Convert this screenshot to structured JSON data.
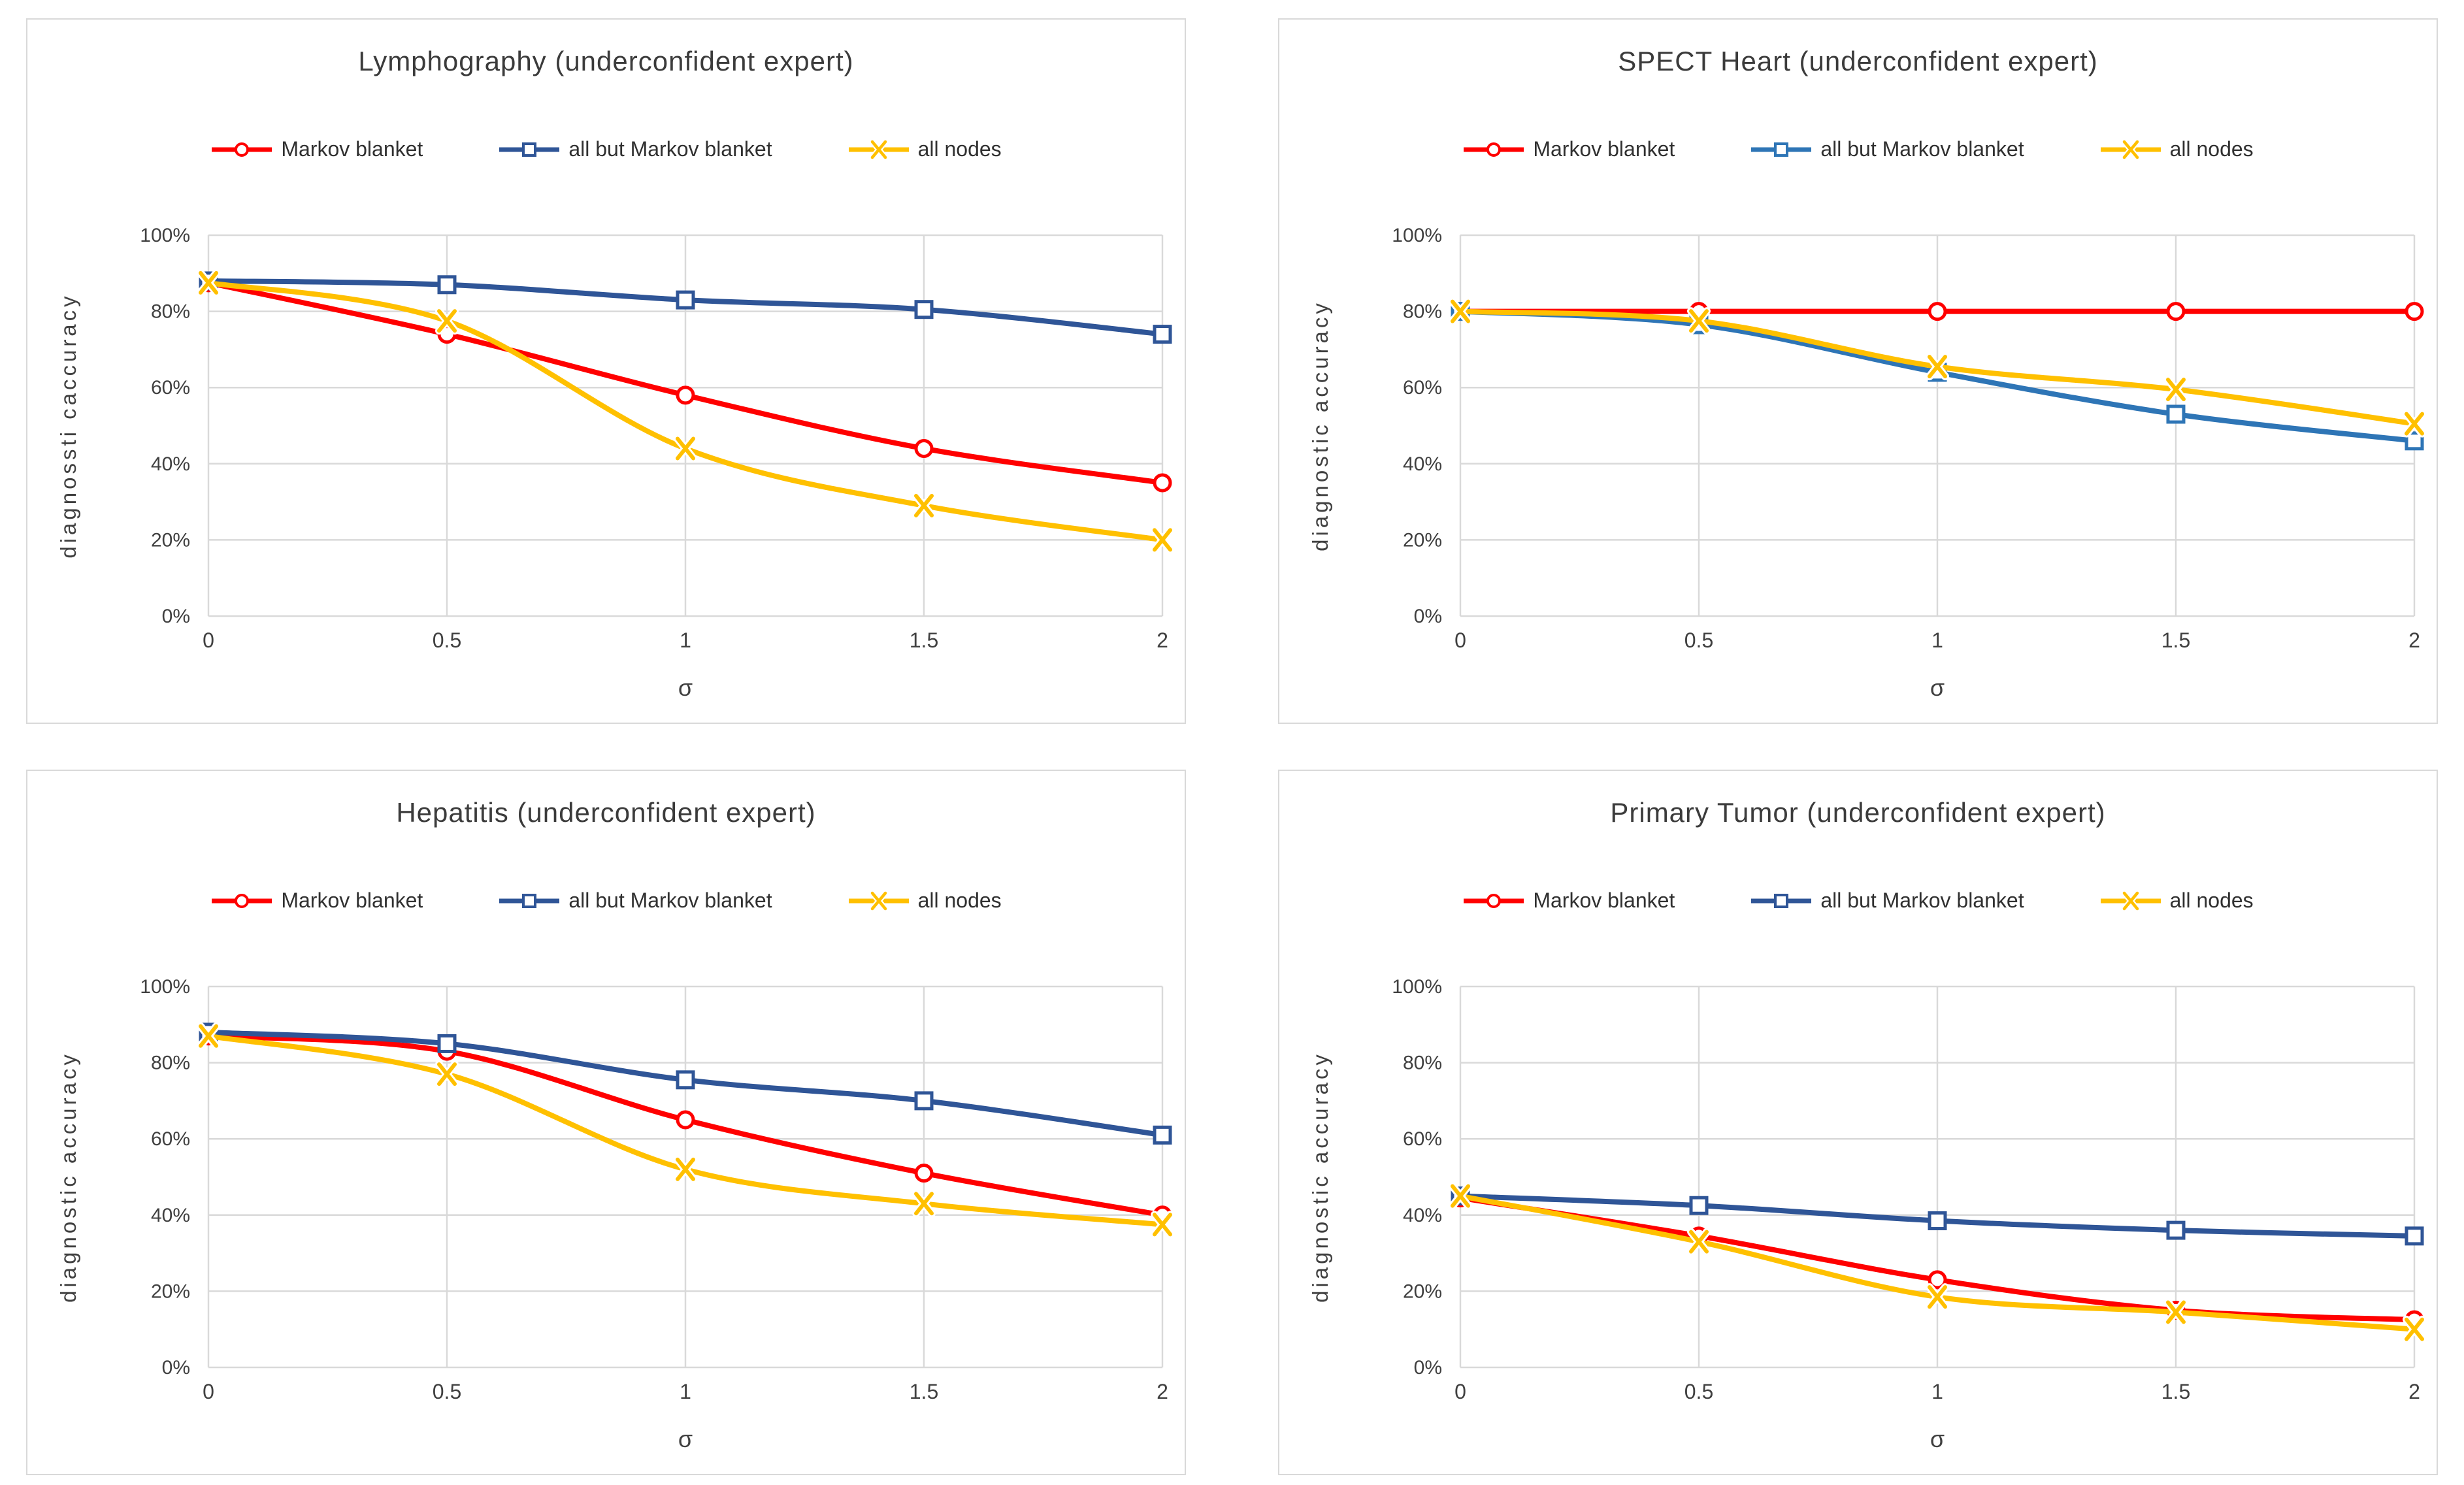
{
  "style": {
    "background": "#FFFFFF",
    "panel_border_color": "#D9D9D9",
    "grid_color": "#D9D9D9",
    "axis_text_color": "#404040",
    "title_color": "#3B3B3B",
    "marker_fill": "#FFFFFF"
  },
  "chart_data": [
    {
      "type": "line",
      "title": "Lymphography (underconfident expert)",
      "xlabel": "σ",
      "ylabel": "diagnossti caccuracy",
      "x": [
        0,
        0.5,
        1,
        1.5,
        2
      ],
      "x_tick_labels": [
        "0",
        "0.5",
        "1",
        "1.5",
        "2"
      ],
      "y_tick_labels": [
        "0%",
        "20%",
        "40%",
        "60%",
        "80%",
        "100%"
      ],
      "ylim": [
        0,
        100
      ],
      "grid": true,
      "legend_position": "top",
      "series": [
        {
          "name": "Markov blanket",
          "color": "#FF0000",
          "marker": "circle",
          "values": [
            87.5,
            74,
            58,
            44,
            35
          ]
        },
        {
          "name": "all but Markov blanket",
          "color": "#2F5597",
          "marker": "square",
          "values": [
            88,
            87,
            83,
            80.5,
            74
          ]
        },
        {
          "name": "all nodes",
          "color": "#FFC000",
          "marker": "x",
          "values": [
            87.5,
            77.5,
            44,
            29,
            20
          ]
        }
      ]
    },
    {
      "type": "line",
      "title": "SPECT Heart (underconfident expert)",
      "xlabel": "σ",
      "ylabel": "diagnostic accuracy",
      "x": [
        0,
        0.5,
        1,
        1.5,
        2
      ],
      "x_tick_labels": [
        "0",
        "0.5",
        "1",
        "1.5",
        "2"
      ],
      "y_tick_labels": [
        "0%",
        "20%",
        "40%",
        "60%",
        "80%",
        "100%"
      ],
      "ylim": [
        0,
        100
      ],
      "grid": true,
      "legend_position": "top",
      "series": [
        {
          "name": "Markov blanket",
          "color": "#FF0000",
          "marker": "circle",
          "values": [
            80,
            80,
            80,
            80,
            80
          ]
        },
        {
          "name": "all but Markov blanket",
          "color": "#2E75B6",
          "marker": "square",
          "values": [
            80,
            76.5,
            64,
            53,
            46
          ]
        },
        {
          "name": "all nodes",
          "color": "#FFC000",
          "marker": "x",
          "values": [
            80,
            77.5,
            65.5,
            59.5,
            50.5
          ]
        }
      ]
    },
    {
      "type": "line",
      "title": "Hepatitis (underconfident expert)",
      "xlabel": "σ",
      "ylabel": "diagnostic accuracy",
      "x": [
        0,
        0.5,
        1,
        1.5,
        2
      ],
      "x_tick_labels": [
        "0",
        "0.5",
        "1",
        "1.5",
        "2"
      ],
      "y_tick_labels": [
        "0%",
        "20%",
        "40%",
        "60%",
        "80%",
        "100%"
      ],
      "ylim": [
        0,
        100
      ],
      "grid": true,
      "legend_position": "top",
      "series": [
        {
          "name": "Markov blanket",
          "color": "#FF0000",
          "marker": "circle",
          "values": [
            87,
            83,
            65,
            51,
            40
          ]
        },
        {
          "name": "all but Markov blanket",
          "color": "#2F5597",
          "marker": "square",
          "values": [
            88,
            85,
            75.5,
            70,
            61
          ]
        },
        {
          "name": "all nodes",
          "color": "#FFC000",
          "marker": "x",
          "values": [
            87,
            77,
            52,
            43,
            37.5
          ]
        }
      ]
    },
    {
      "type": "line",
      "title": "Primary Tumor (underconfident expert)",
      "xlabel": "σ",
      "ylabel": "diagnostic accuracy",
      "x": [
        0,
        0.5,
        1,
        1.5,
        2
      ],
      "x_tick_labels": [
        "0",
        "0.5",
        "1",
        "1.5",
        "2"
      ],
      "y_tick_labels": [
        "0%",
        "20%",
        "40%",
        "60%",
        "80%",
        "100%"
      ],
      "ylim": [
        0,
        100
      ],
      "grid": true,
      "legend_position": "top",
      "series": [
        {
          "name": "Markov blanket",
          "color": "#FF0000",
          "marker": "circle",
          "values": [
            44.5,
            34.5,
            23,
            15,
            12.5
          ]
        },
        {
          "name": "all but Markov blanket",
          "color": "#2F5597",
          "marker": "square",
          "values": [
            45,
            42.5,
            38.5,
            36,
            34.5
          ]
        },
        {
          "name": "all nodes",
          "color": "#FFC000",
          "marker": "x",
          "values": [
            45,
            33,
            18.5,
            14.5,
            10
          ]
        }
      ]
    }
  ]
}
